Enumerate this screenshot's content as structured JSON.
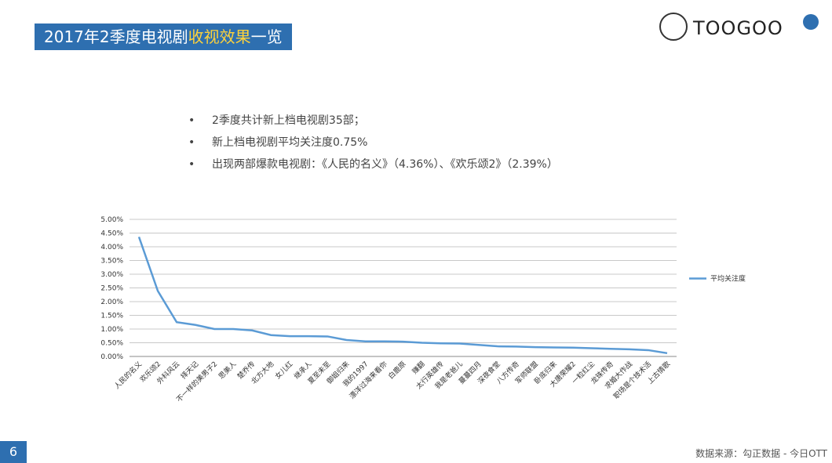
{
  "header": {
    "title_parts": [
      "2017年2季度电视剧",
      "收视效果",
      "一览"
    ],
    "brand": "TOOGOO"
  },
  "bullets": [
    "2季度共计新上档电视剧35部；",
    "新上档电视剧平均关注度0.75%",
    "出现两部爆款电视剧：《人民的名义》（4.36%）、《欢乐颂2》（2.39%）"
  ],
  "chart_data": {
    "type": "line",
    "categories": [
      "人民的名义",
      "欢乐颂2",
      "外科风云",
      "择天记",
      "不一样的美男子2",
      "思美人",
      "楚乔传",
      "北方大地",
      "女儿红",
      "继承人",
      "夏至未至",
      "御姐归来",
      "我的1997",
      "漂洋过海来看你",
      "白鹿原",
      "赚翻",
      "太行英雄传",
      "我是老爸儿",
      "蔓蔓四月",
      "深夜食堂",
      "八方传奇",
      "军师联盟",
      "卧底归来",
      "大唐荣耀2",
      "一粒红尘",
      "龙珠传奇",
      "求婚大作战",
      "职场是个技术活",
      "上古情歌"
    ],
    "series": [
      {
        "name": "平均关注度",
        "color": "#5b9bd5",
        "values": [
          4.36,
          2.39,
          1.25,
          1.15,
          1.0,
          1.0,
          0.95,
          0.78,
          0.74,
          0.74,
          0.73,
          0.6,
          0.55,
          0.55,
          0.54,
          0.5,
          0.48,
          0.47,
          0.42,
          0.37,
          0.36,
          0.34,
          0.33,
          0.32,
          0.3,
          0.28,
          0.26,
          0.23,
          0.12
        ]
      }
    ],
    "ylim": [
      0,
      5
    ],
    "yticks": [
      {
        "value": 0,
        "label": "0.00%"
      },
      {
        "value": 0.5,
        "label": "0.50%"
      },
      {
        "value": 1,
        "label": "1.00%"
      },
      {
        "value": 1.5,
        "label": "1.50%"
      },
      {
        "value": 2,
        "label": "2.00%"
      },
      {
        "value": 2.5,
        "label": "2.50%"
      },
      {
        "value": 3,
        "label": "3.00%"
      },
      {
        "value": 3.5,
        "label": "3.50%"
      },
      {
        "value": 4,
        "label": "4.00%"
      },
      {
        "value": 4.5,
        "label": "4.50%"
      },
      {
        "value": 5,
        "label": "5.00%"
      }
    ],
    "grid": true,
    "legend": "right"
  },
  "footer": {
    "page": "6",
    "source": "数据来源：勾正数据 - 今日OTT"
  }
}
